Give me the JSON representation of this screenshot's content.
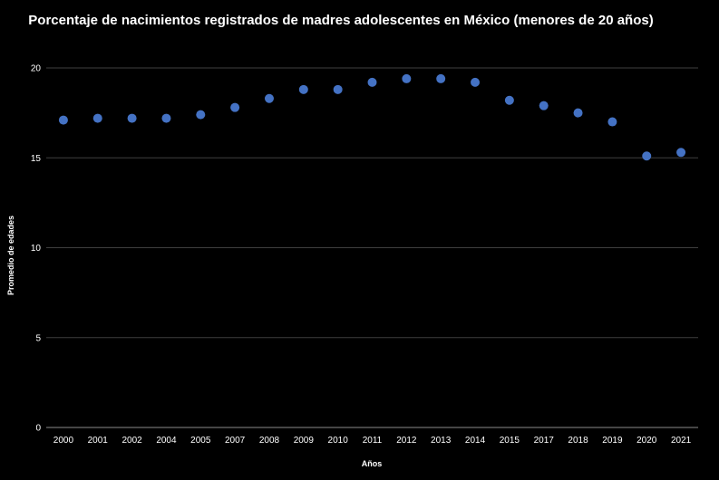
{
  "chart_data": {
    "type": "scatter",
    "title": "Porcentaje de nacimientos registrados de madres adolescentes en México  (menores de 20 años)",
    "xlabel": "Años",
    "ylabel": "Promedio de edades",
    "ylim": [
      0,
      20
    ],
    "yticks": [
      0,
      5,
      10,
      15,
      20
    ],
    "grid": true,
    "marker_color": "#4472C4",
    "background_color": "#000000",
    "categories": [
      "2000",
      "2001",
      "2002",
      "2004",
      "2005",
      "2007",
      "2008",
      "2009",
      "2010",
      "2011",
      "2012",
      "2013",
      "2014",
      "2015",
      "2017",
      "2018",
      "2019",
      "2020",
      "2021"
    ],
    "values": [
      17.1,
      17.2,
      17.2,
      17.2,
      17.4,
      17.8,
      18.3,
      18.8,
      18.8,
      19.2,
      19.4,
      19.4,
      19.2,
      18.2,
      17.9,
      17.5,
      17.0,
      15.1,
      15.3
    ]
  }
}
